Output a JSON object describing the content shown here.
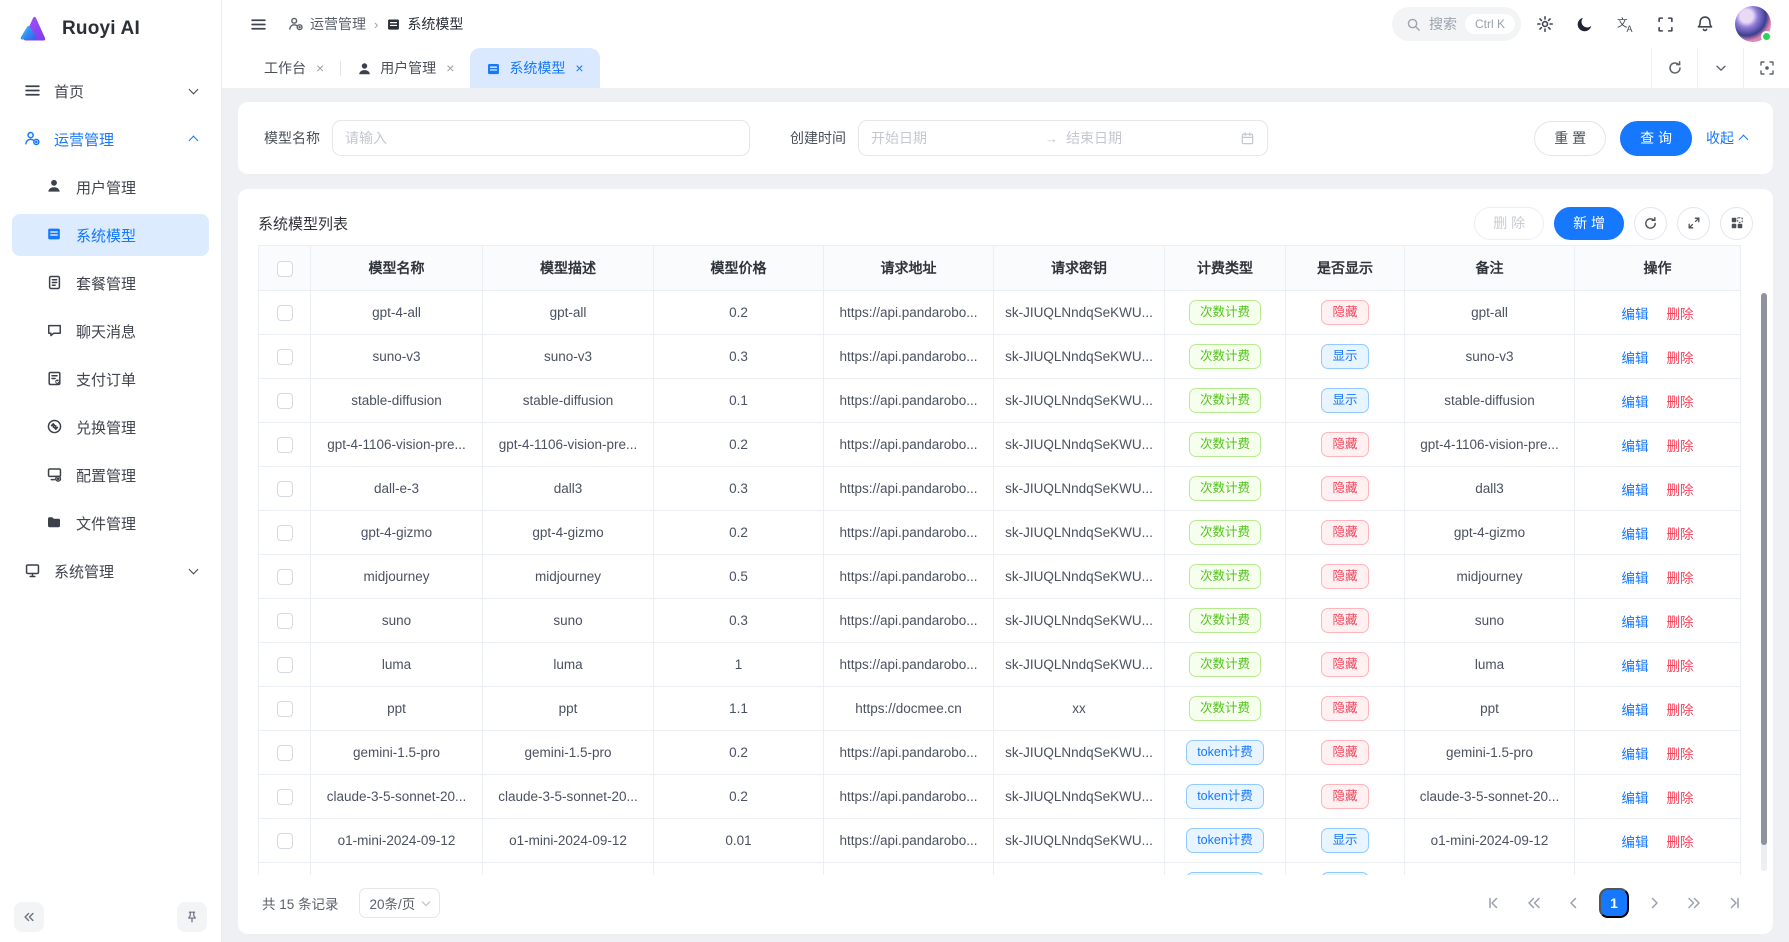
{
  "colors": {
    "accent": "#1677ff",
    "accent-soft": "#dbe9fe",
    "tag-green": "#52c41a",
    "tag-red": "#f5455c",
    "danger": "#f5455c",
    "content-bg": "#eef0f4"
  },
  "app": {
    "brand": "Ruoyi AI"
  },
  "sidebar": {
    "items": [
      {
        "key": "home",
        "label": "首页",
        "icon": "menu-icon",
        "level": 0,
        "chevron": "down"
      },
      {
        "key": "operations",
        "label": "运营管理",
        "icon": "operations-icon",
        "level": 0,
        "chevron": "up",
        "active": true
      },
      {
        "key": "user-management",
        "label": "用户管理",
        "icon": "user-icon",
        "level": 1
      },
      {
        "key": "system-model",
        "label": "系统模型",
        "icon": "model-icon",
        "level": 1,
        "selected": true
      },
      {
        "key": "package-management",
        "label": "套餐管理",
        "icon": "package-icon",
        "level": 1
      },
      {
        "key": "chat-messages",
        "label": "聊天消息",
        "icon": "chat-icon",
        "level": 1
      },
      {
        "key": "payment-orders",
        "label": "支付订单",
        "icon": "order-icon",
        "level": 1
      },
      {
        "key": "redeem-management",
        "label": "兑换管理",
        "icon": "redeem-icon",
        "level": 1
      },
      {
        "key": "config-management",
        "label": "配置管理",
        "icon": "config-icon",
        "level": 1
      },
      {
        "key": "file-management",
        "label": "文件管理",
        "icon": "folder-icon",
        "level": 1
      },
      {
        "key": "system-management",
        "label": "系统管理",
        "icon": "system-icon",
        "level": 0,
        "chevron": "down"
      }
    ]
  },
  "header": {
    "breadcrumb": [
      {
        "label": "运营管理",
        "icon": "operations-icon"
      },
      {
        "label": "系统模型",
        "icon": "model-icon",
        "current": true
      }
    ],
    "search": {
      "placeholder": "搜索",
      "shortcut": "Ctrl K"
    }
  },
  "tabs": [
    {
      "key": "workbench",
      "label": "工作台"
    },
    {
      "key": "user-management",
      "label": "用户管理",
      "icon": "user-icon"
    },
    {
      "key": "system-model",
      "label": "系统模型",
      "icon": "model-icon",
      "active": true
    }
  ],
  "filter": {
    "model_name_label": "模型名称",
    "model_name_placeholder": "请输入",
    "created_label": "创建时间",
    "start_placeholder": "开始日期",
    "end_placeholder": "结束日期",
    "reset_label": "重 置",
    "search_label": "查 询",
    "collapse_label": "收起"
  },
  "table": {
    "title": "系统模型列表",
    "delete_label": "删 除",
    "add_label": "新 增",
    "columns": [
      "模型名称",
      "模型描述",
      "模型价格",
      "请求地址",
      "请求密钥",
      "计费类型",
      "是否显示",
      "备注",
      "操作"
    ],
    "edit_label": "编辑",
    "del_label": "删除",
    "rows": [
      {
        "name": "gpt-4-all",
        "desc": "gpt-all",
        "price": "0.2",
        "url": "https://api.pandarobo...",
        "key": "sk-JIUQLNndqSeKWU...",
        "billing": "次数计费",
        "billing_type": "green",
        "visible": "隐藏",
        "visible_type": "red",
        "remark": "gpt-all"
      },
      {
        "name": "suno-v3",
        "desc": "suno-v3",
        "price": "0.3",
        "url": "https://api.pandarobo...",
        "key": "sk-JIUQLNndqSeKWU...",
        "billing": "次数计费",
        "billing_type": "green",
        "visible": "显示",
        "visible_type": "blue",
        "remark": "suno-v3"
      },
      {
        "name": "stable-diffusion",
        "desc": "stable-diffusion",
        "price": "0.1",
        "url": "https://api.pandarobo...",
        "key": "sk-JIUQLNndqSeKWU...",
        "billing": "次数计费",
        "billing_type": "green",
        "visible": "显示",
        "visible_type": "blue",
        "remark": "stable-diffusion"
      },
      {
        "name": "gpt-4-1106-vision-pre...",
        "desc": "gpt-4-1106-vision-pre...",
        "price": "0.2",
        "url": "https://api.pandarobo...",
        "key": "sk-JIUQLNndqSeKWU...",
        "billing": "次数计费",
        "billing_type": "green",
        "visible": "隐藏",
        "visible_type": "red",
        "remark": "gpt-4-1106-vision-pre..."
      },
      {
        "name": "dall-e-3",
        "desc": "dall3",
        "price": "0.3",
        "url": "https://api.pandarobo...",
        "key": "sk-JIUQLNndqSeKWU...",
        "billing": "次数计费",
        "billing_type": "green",
        "visible": "隐藏",
        "visible_type": "red",
        "remark": "dall3"
      },
      {
        "name": "gpt-4-gizmo",
        "desc": "gpt-4-gizmo",
        "price": "0.2",
        "url": "https://api.pandarobo...",
        "key": "sk-JIUQLNndqSeKWU...",
        "billing": "次数计费",
        "billing_type": "green",
        "visible": "隐藏",
        "visible_type": "red",
        "remark": "gpt-4-gizmo"
      },
      {
        "name": "midjourney",
        "desc": "midjourney",
        "price": "0.5",
        "url": "https://api.pandarobo...",
        "key": "sk-JIUQLNndqSeKWU...",
        "billing": "次数计费",
        "billing_type": "green",
        "visible": "隐藏",
        "visible_type": "red",
        "remark": "midjourney"
      },
      {
        "name": "suno",
        "desc": "suno",
        "price": "0.3",
        "url": "https://api.pandarobo...",
        "key": "sk-JIUQLNndqSeKWU...",
        "billing": "次数计费",
        "billing_type": "green",
        "visible": "隐藏",
        "visible_type": "red",
        "remark": "suno"
      },
      {
        "name": "luma",
        "desc": "luma",
        "price": "1",
        "url": "https://api.pandarobo...",
        "key": "sk-JIUQLNndqSeKWU...",
        "billing": "次数计费",
        "billing_type": "green",
        "visible": "隐藏",
        "visible_type": "red",
        "remark": "luma"
      },
      {
        "name": "ppt",
        "desc": "ppt",
        "price": "1.1",
        "url": "https://docmee.cn",
        "key": "xx",
        "billing": "次数计费",
        "billing_type": "green",
        "visible": "隐藏",
        "visible_type": "red",
        "remark": "ppt"
      },
      {
        "name": "gemini-1.5-pro",
        "desc": "gemini-1.5-pro",
        "price": "0.2",
        "url": "https://api.pandarobo...",
        "key": "sk-JIUQLNndqSeKWU...",
        "billing": "token计费",
        "billing_type": "blue",
        "visible": "隐藏",
        "visible_type": "red",
        "remark": "gemini-1.5-pro"
      },
      {
        "name": "claude-3-5-sonnet-20...",
        "desc": "claude-3-5-sonnet-20...",
        "price": "0.2",
        "url": "https://api.pandarobo...",
        "key": "sk-JIUQLNndqSeKWU...",
        "billing": "token计费",
        "billing_type": "blue",
        "visible": "隐藏",
        "visible_type": "red",
        "remark": "claude-3-5-sonnet-20..."
      },
      {
        "name": "o1-mini-2024-09-12",
        "desc": "o1-mini-2024-09-12",
        "price": "0.01",
        "url": "https://api.pandarobo...",
        "key": "sk-JIUQLNndqSeKWU...",
        "billing": "token计费",
        "billing_type": "blue",
        "visible": "显示",
        "visible_type": "blue",
        "remark": "o1-mini-2024-09-12"
      },
      {
        "name": "",
        "desc": "",
        "price": "",
        "url": "",
        "key": "",
        "billing": "token计费",
        "billing_type": "blue",
        "visible": "显示",
        "visible_type": "blue",
        "remark": ""
      }
    ]
  },
  "pagination": {
    "total_label": "共 15 条记录",
    "page_size_label": "20条/页",
    "current_page": "1"
  }
}
